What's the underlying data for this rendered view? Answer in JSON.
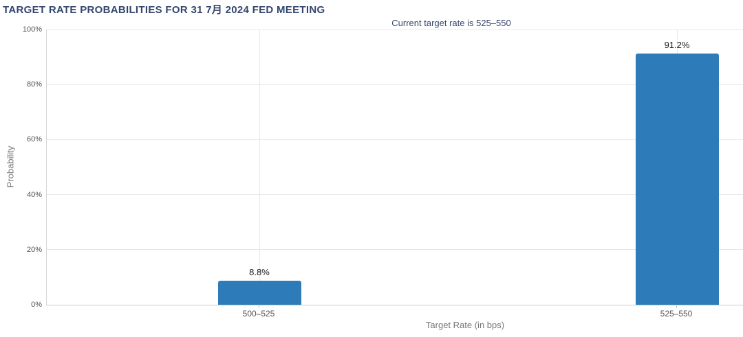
{
  "header": {
    "title": "TARGET RATE PROBABILITIES FOR 31 7月 2024 FED MEETING",
    "subtitle": "Current target rate is 525–550"
  },
  "chart_data": {
    "type": "bar",
    "title": "TARGET RATE PROBABILITIES FOR 31 7月 2024 FED MEETING",
    "subtitle": "Current target rate is 525–550",
    "categories": [
      "500–525",
      "525–550"
    ],
    "values": [
      8.8,
      91.2
    ],
    "value_labels": [
      "8.8%",
      "91.2%"
    ],
    "xlabel": "Target Rate (in bps)",
    "ylabel": "Probability",
    "ylim": [
      0,
      100
    ],
    "ytick_values": [
      0,
      20,
      40,
      60,
      80,
      100
    ],
    "ytick_labels": [
      "0%",
      "20%",
      "40%",
      "60%",
      "80%",
      "100%"
    ],
    "grid": "horizontal gridlines every 20%, one vertical gridline per category center",
    "legend": "none",
    "bar_color": "#2d7cb9",
    "title_color": "#34466e",
    "gridline_color": "#e7e7e7"
  }
}
